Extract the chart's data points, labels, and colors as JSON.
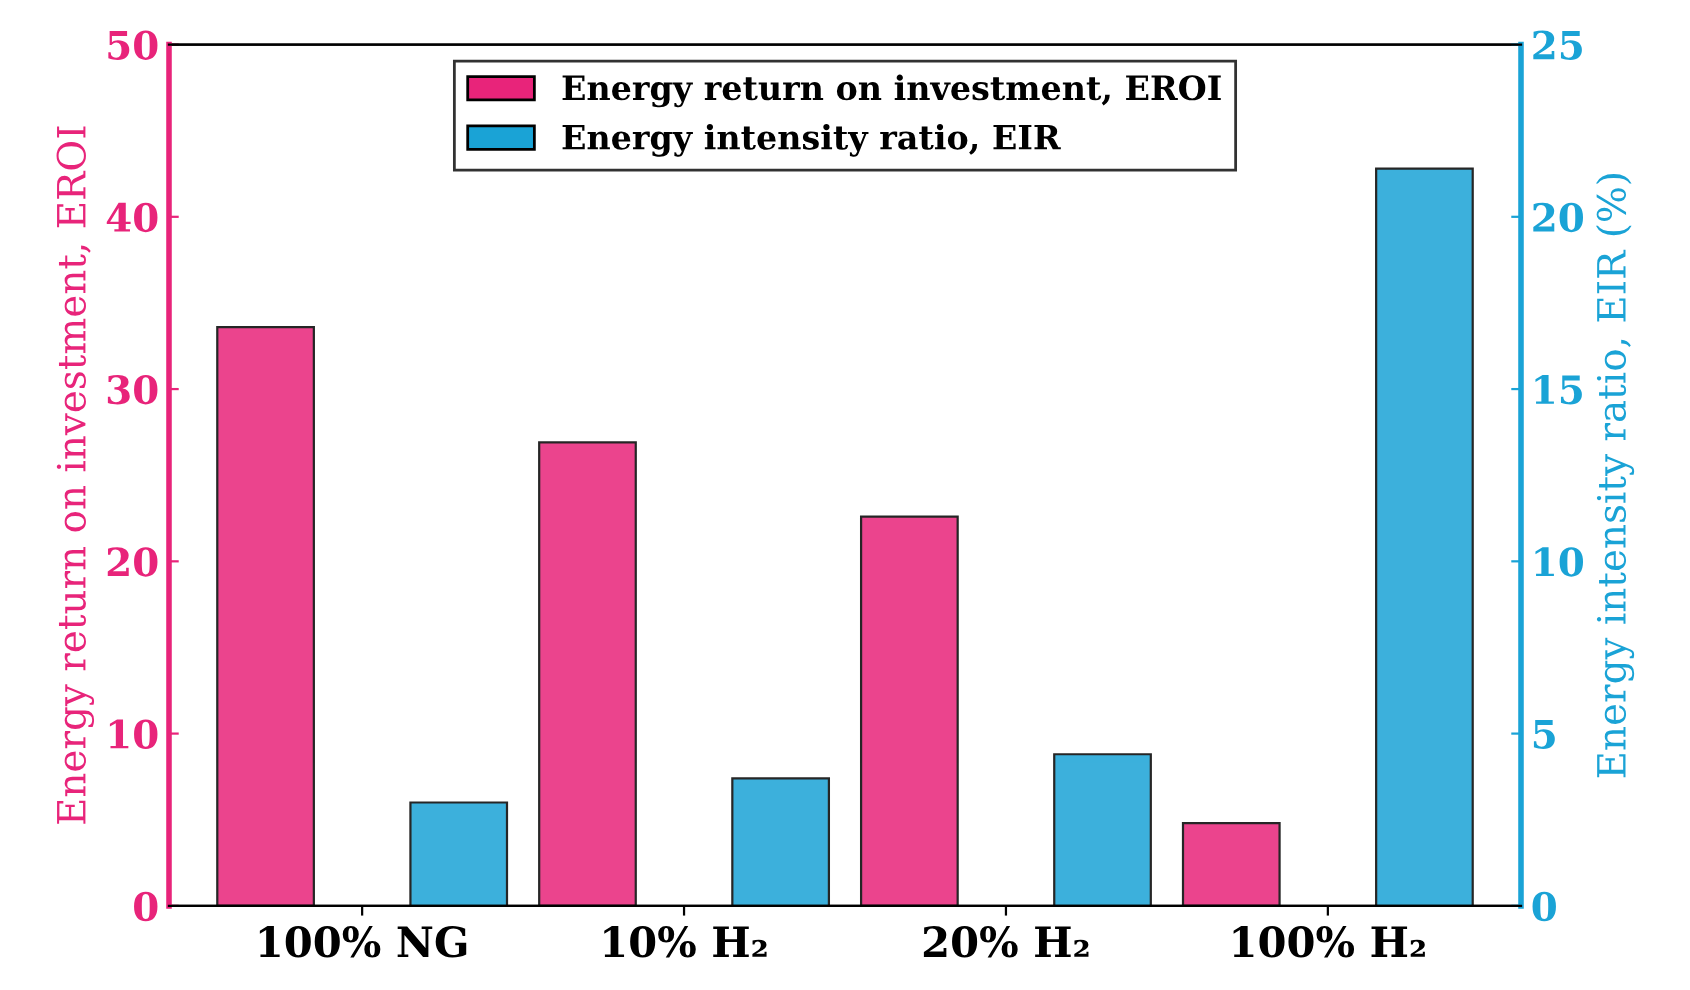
{
  "chart_data": {
    "type": "bar",
    "categories": [
      "100% NG",
      "10% H₂",
      "20% H₂",
      "100% H₂"
    ],
    "ylabel": "Energy return on investment, EROI",
    "y2label": "Energy intensity ratio, EIR (%)",
    "ylim": [
      0,
      50
    ],
    "yticks": [
      0,
      10,
      20,
      30,
      40,
      50
    ],
    "y2lim": [
      0,
      25
    ],
    "y2ticks": [
      0,
      5,
      10,
      15,
      20,
      25
    ],
    "legend": "top",
    "grid": false,
    "series": [
      {
        "name": "Energy return on investment, EROI",
        "color": "#e8247a",
        "values": [
          33.6,
          26.9,
          22.6,
          4.8
        ]
      },
      {
        "name": "Energy intensity ratio, EIR",
        "color": "#1aa3d6",
        "axis": "y2",
        "values": [
          3.0,
          3.7,
          4.4,
          21.4
        ]
      }
    ]
  }
}
